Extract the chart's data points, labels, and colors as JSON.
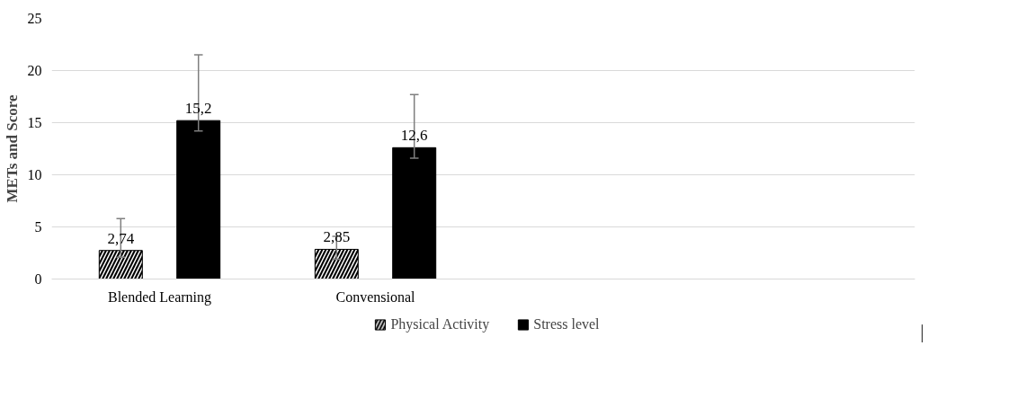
{
  "chart_data": {
    "type": "bar",
    "ylabel": "METs and Score",
    "categories": [
      "Blended Learning",
      "Convensional",
      null,
      null
    ],
    "series": [
      {
        "name": "Physical Activity",
        "color": "#000000",
        "values": [
          2.74,
          2.85,
          null,
          null
        ],
        "errors": [
          [
            2.1,
            5.8
          ],
          [
            1.9,
            4.1
          ],
          null,
          null
        ],
        "value_labels": [
          "2,74",
          "2,85",
          null,
          null
        ]
      },
      {
        "name": "Stress level",
        "color": "#000000",
        "values": [
          15.2,
          12.6,
          null,
          null
        ],
        "errors": [
          [
            14.2,
            21.5
          ],
          [
            11.6,
            17.7
          ],
          null,
          null
        ],
        "value_labels": [
          "15,2",
          "12,6",
          null,
          null
        ]
      }
    ],
    "ylim": [
      0,
      25
    ],
    "yticks": [
      0,
      5,
      10,
      15,
      20,
      25
    ],
    "grid": "y",
    "legend": "bottom"
  }
}
